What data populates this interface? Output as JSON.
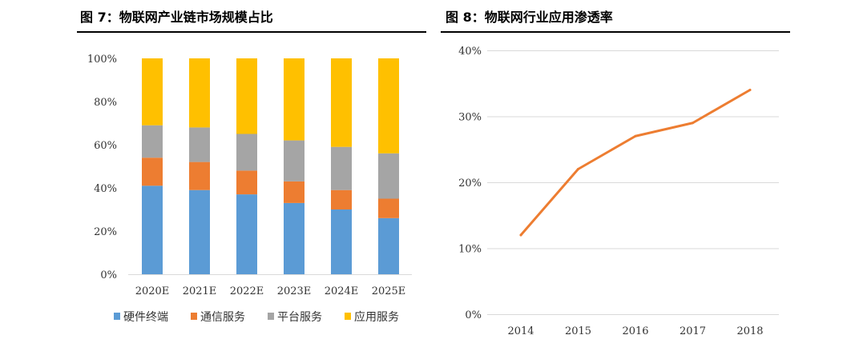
{
  "figure_left": {
    "title": "图 7：物联网产业链市场规模占比"
  },
  "figure_right": {
    "title": "图 8：物联网行业应用渗透率"
  },
  "chart_data": [
    {
      "type": "bar",
      "stacked": true,
      "title": "图 7：物联网产业链市场规模占比",
      "categories": [
        "2020E",
        "2021E",
        "2022E",
        "2023E",
        "2024E",
        "2025E"
      ],
      "y_tick_labels": [
        "0%",
        "20%",
        "40%",
        "60%",
        "80%",
        "100%"
      ],
      "ylim": [
        0,
        100
      ],
      "grid": false,
      "legend_position": "bottom",
      "series": [
        {
          "name": "硬件终端",
          "color": "#5b9bd5",
          "values": [
            41,
            39,
            37,
            33,
            30,
            26
          ]
        },
        {
          "name": "通信服务",
          "color": "#ed7d31",
          "values": [
            13,
            13,
            11,
            10,
            9,
            9
          ]
        },
        {
          "name": "平台服务",
          "color": "#a5a5a5",
          "values": [
            15,
            16,
            17,
            19,
            20,
            21
          ]
        },
        {
          "name": "应用服务",
          "color": "#ffc000",
          "values": [
            31,
            32,
            35,
            38,
            41,
            44
          ]
        }
      ]
    },
    {
      "type": "line",
      "title": "图 8：物联网行业应用渗透率",
      "x": [
        "2014",
        "2015",
        "2016",
        "2017",
        "2018"
      ],
      "y_tick_labels": [
        "0%",
        "10%",
        "20%",
        "30%",
        "40%"
      ],
      "ylim": [
        0,
        40
      ],
      "grid": true,
      "series": [
        {
          "color": "#ed7d31",
          "values": [
            12,
            22,
            27,
            29,
            34
          ]
        }
      ]
    }
  ]
}
